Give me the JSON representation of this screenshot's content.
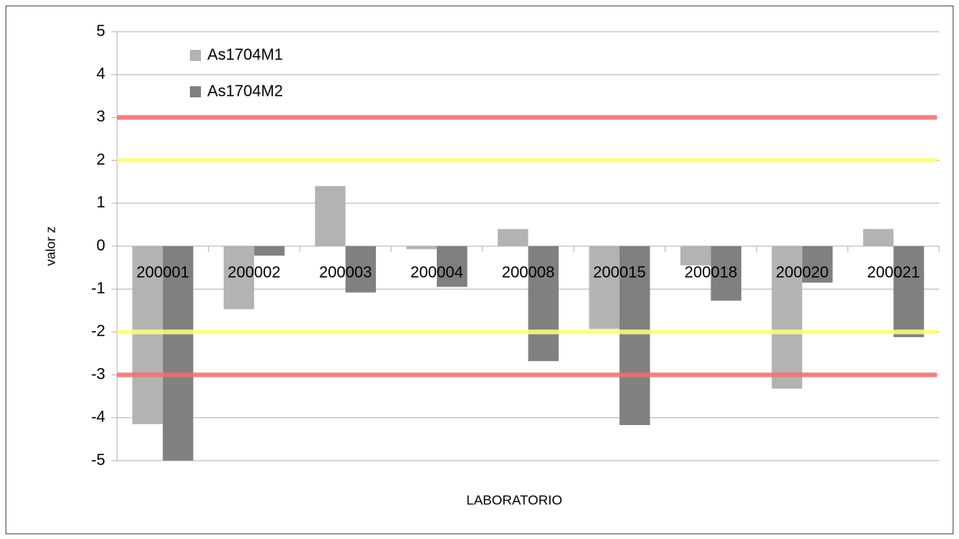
{
  "chart_data": {
    "type": "bar",
    "x_label": "LABORATORIO",
    "y_label": "valor z",
    "categories": [
      "200001",
      "200002",
      "200003",
      "200004",
      "200008",
      "200015",
      "200018",
      "200020",
      "200021"
    ],
    "series": [
      {
        "name": "As1704M1",
        "color": "#b3b3b3",
        "values": [
          -4.15,
          -1.47,
          1.4,
          -0.07,
          0.4,
          -1.93,
          -0.45,
          -3.32,
          0.4
        ]
      },
      {
        "name": "As1704M2",
        "color": "#808080",
        "values": [
          -5,
          -0.22,
          -1.08,
          -0.95,
          -2.68,
          -4.17,
          -1.27,
          -0.85,
          -2.12
        ]
      }
    ],
    "ylim": [
      -5,
      5
    ],
    "yticks": [
      -5,
      -4,
      -3,
      -2,
      -1,
      0,
      1,
      2,
      3,
      4,
      5
    ],
    "grid": true,
    "reference_lines": [
      {
        "value": 3,
        "color": "#f07070"
      },
      {
        "value": 2,
        "color": "#ffff80"
      },
      {
        "value": -2,
        "color": "#ffff80"
      },
      {
        "value": -3,
        "color": "#f07070"
      }
    ],
    "legend": "top-left"
  }
}
